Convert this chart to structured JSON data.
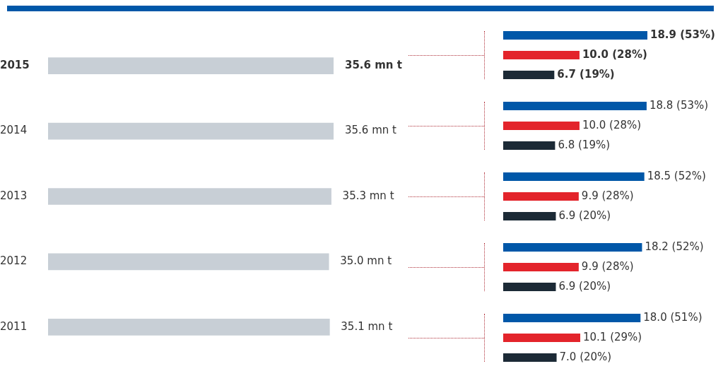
{
  "chart_data": [
    {
      "type": "bar",
      "orientation": "horizontal",
      "tick_labels": "y",
      "categories": [
        "2015",
        "2014",
        "2013",
        "2012",
        "2011"
      ],
      "values": [
        35.6,
        35.6,
        35.3,
        35.0,
        35.1
      ],
      "color": "#c8cfd6",
      "value_labels": [
        "35.6 mn t",
        "35.6 mn t",
        "35.3 mn t",
        "35.0 mn t",
        "35.1 mn t"
      ]
    },
    {
      "type": "bar",
      "orientation": "horizontal",
      "tick_labels": false,
      "categories": [
        null,
        null,
        null,
        null,
        null
      ],
      "series": [
        {
          "color": "#0057a8",
          "values": [
            18.9,
            18.8,
            18.5,
            18.2,
            18.0
          ],
          "value_labels": [
            "18.9 (53%)",
            "18.8 (53%)",
            "18.5 (52%)",
            "18.2 (52%)",
            "18.0 (51%)"
          ]
        },
        {
          "color": "#e3242b",
          "values": [
            10.0,
            10.0,
            9.9,
            9.9,
            10.1
          ],
          "value_labels": [
            "10.0 (28%)",
            "10.0 (28%)",
            "9.9 (28%)",
            "9.9 (28%)",
            "10.1 (29%)"
          ]
        },
        {
          "color": "#1c2a36",
          "values": [
            6.7,
            6.8,
            6.9,
            6.9,
            7.0
          ],
          "value_labels": [
            "6.7 (19%)",
            "6.8 (19%)",
            "6.9 (20%)",
            "6.9 (20%)",
            "7.0 (20%)"
          ]
        }
      ]
    }
  ]
}
